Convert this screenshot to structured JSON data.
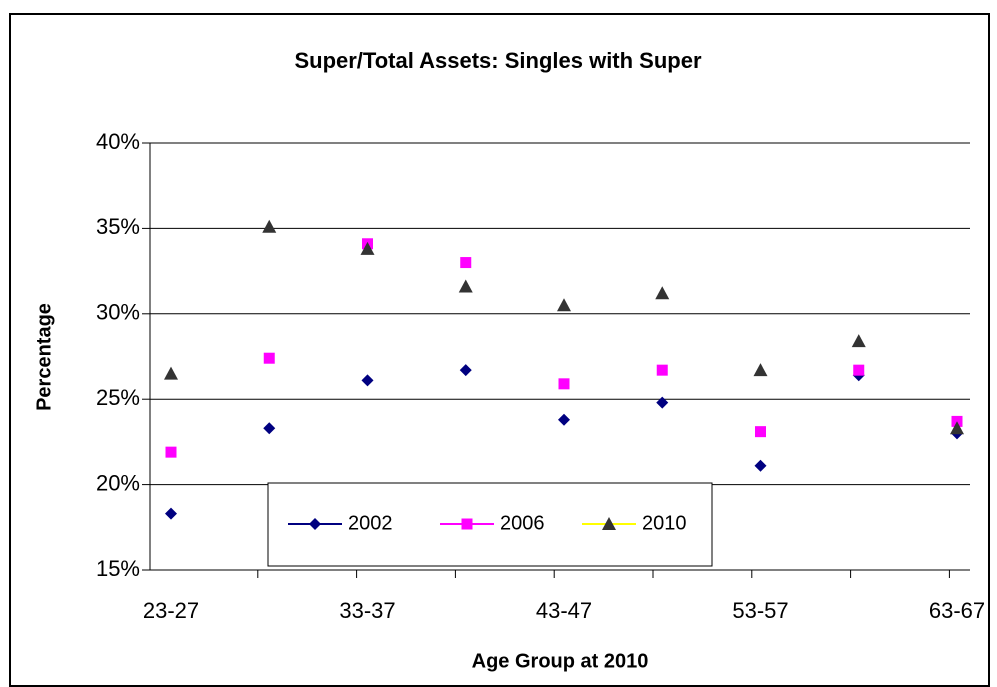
{
  "chart_data": {
    "type": "scatter",
    "title": "Super/Total Assets: Singles with Super",
    "x_label": "Age Group at 2010",
    "y_label": "Percentage",
    "categories": [
      "23-27",
      null,
      "33-37",
      null,
      "43-47",
      null,
      "53-57",
      null,
      "63-67"
    ],
    "ylim": [
      15,
      40
    ],
    "yticks": [
      {
        "value": 15,
        "label": "15%"
      },
      {
        "value": 20,
        "label": "20%"
      },
      {
        "value": 25,
        "label": "25%"
      },
      {
        "value": 30,
        "label": "30%"
      },
      {
        "value": 35,
        "label": "35%"
      },
      {
        "value": 40,
        "label": "40%"
      }
    ],
    "grid": true,
    "series": [
      {
        "name": "2002",
        "color": "#000080",
        "legend_line_color": "#000080",
        "marker": "diamond",
        "values": [
          18.3,
          23.3,
          26.1,
          26.7,
          23.8,
          24.8,
          21.1,
          26.4,
          23.0
        ]
      },
      {
        "name": "2006",
        "color": "#ff00ff",
        "legend_line_color": "#ff00ff",
        "marker": "square",
        "values": [
          21.9,
          27.4,
          34.1,
          33.0,
          25.9,
          26.7,
          23.1,
          26.7,
          23.7
        ]
      },
      {
        "name": "2010",
        "color": "#333333",
        "legend_line_color": "#ffff00",
        "marker": "triangle",
        "values": [
          26.5,
          35.1,
          33.8,
          31.6,
          30.5,
          31.2,
          26.7,
          28.4,
          23.3
        ]
      }
    ]
  }
}
